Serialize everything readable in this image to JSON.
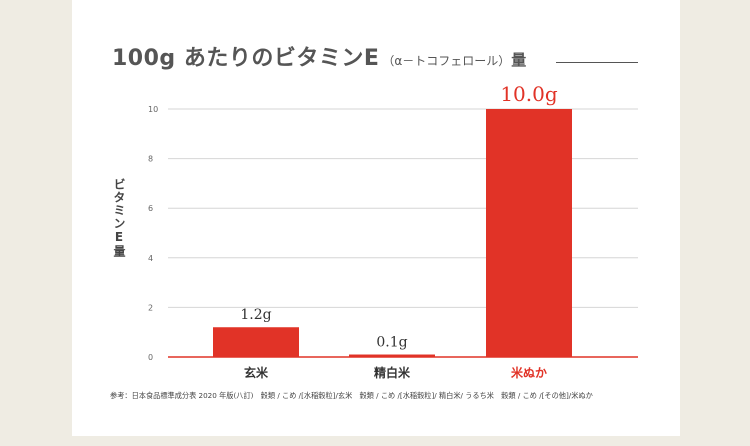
{
  "colors": {
    "background": "#efece3",
    "card": "#ffffff",
    "bar": "#e13327",
    "highlight": "#e13327",
    "text": "#444444",
    "grid": "#d6d6d6"
  },
  "chart_data": {
    "type": "bar",
    "title": "100g あたりのビタミンE",
    "title_sub": "（α－トコフェロール）",
    "title_tail": "量",
    "ylabel": "ビタミンE量",
    "xlabel": "",
    "categories": [
      "玄米",
      "精白米",
      "米ぬか"
    ],
    "values": [
      1.2,
      0.1,
      10.0
    ],
    "value_labels": [
      "1.2g",
      "0.1g",
      "10.0g"
    ],
    "highlight_index": 2,
    "ylim": [
      0,
      10
    ],
    "yticks": [
      0,
      2,
      4,
      6,
      8,
      10
    ],
    "ytick_labels": [
      "0",
      "2",
      "4",
      "6",
      "8",
      "10"
    ],
    "grid": true,
    "legend": "none"
  },
  "footnote": "参考：日本食品標準成分表 2020 年版(八訂)　穀類 / こめ /[水稲穀粒]/玄米　穀類 / こめ /[水稲穀粒]/ 精白米/ うるち米　穀類 / こめ /[その他]/米ぬか"
}
